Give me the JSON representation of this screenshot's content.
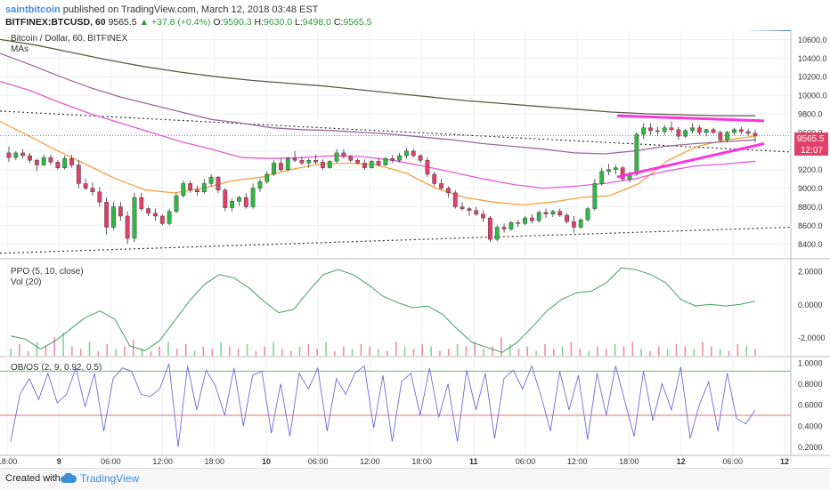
{
  "header": {
    "author": "saintbitcoin",
    "publish_text": "published on TradingView.com, March 12, 2018 03:48 EST",
    "symbol": "BITFINEX:BTCUSD, 60",
    "last": "9565.5",
    "change": "▲ +37.8 (+0.4%)",
    "o_label": "O:",
    "o": "9590.3",
    "h_label": "H:",
    "h": "9630.0",
    "l_label": "L:",
    "l": "9498.0",
    "c_label": "C:",
    "c": "9565.5"
  },
  "panes": {
    "main_title": "Bitcoin / Dollar, 60, BITFINEX",
    "main_subtitle": "MAs",
    "ppo_title": "PPO (5, 10, close)",
    "vol_title": "Vol (20)",
    "obos_title": "OB/OS (2, 9, 0.92, 0.5)",
    "price_tag": "9565.5",
    "time_tag": "12:07"
  },
  "footer": {
    "created": "Created with",
    "brand": "TradingView"
  },
  "colors": {
    "up": "#2fb844",
    "down": "#e0406a",
    "ma_orange": "#f5a040",
    "ma_pink": "#e65ad8",
    "ma_purple": "#9a6b93",
    "ma_dark": "#5a5a4a",
    "trend_blue": "#3d7fc9",
    "channel_magenta": "#ff33dd",
    "ppo": "#3fa063",
    "obos": "#6b6bd6",
    "level_red": "#e57373",
    "level_green": "#6bbf6b"
  },
  "chart_data": [
    {
      "type": "candlestick",
      "title": "Bitcoin / Dollar, 60, BITFINEX",
      "x_ticks": [
        "18:00",
        "9",
        "06:00",
        "12:00",
        "18:00",
        "10",
        "06:00",
        "12:00",
        "18:00",
        "11",
        "06:00",
        "12:00",
        "18:00",
        "12",
        "06:00",
        "12"
      ],
      "y_ticks": [
        10600,
        10400,
        10200,
        10000,
        9800,
        9600,
        9400,
        9200,
        9000,
        8800,
        8600,
        8400
      ],
      "ylim": [
        8250,
        10700
      ],
      "ohlc": [
        [
          9380,
          9450,
          9280,
          9330
        ],
        [
          9330,
          9400,
          9300,
          9380
        ],
        [
          9380,
          9420,
          9320,
          9350
        ],
        [
          9350,
          9380,
          9270,
          9300
        ],
        [
          9300,
          9320,
          9180,
          9250
        ],
        [
          9250,
          9360,
          9240,
          9330
        ],
        [
          9330,
          9360,
          9250,
          9280
        ],
        [
          9280,
          9300,
          9200,
          9220
        ],
        [
          9220,
          9350,
          9200,
          9320
        ],
        [
          9320,
          9360,
          9220,
          9250
        ],
        [
          9250,
          9300,
          9000,
          9050
        ],
        [
          9050,
          9100,
          8980,
          9000
        ],
        [
          9000,
          9060,
          8920,
          8960
        ],
        [
          8960,
          9010,
          8800,
          8850
        ],
        [
          8850,
          8900,
          8500,
          8580
        ],
        [
          8580,
          8850,
          8550,
          8800
        ],
        [
          8800,
          8850,
          8650,
          8700
        ],
        [
          8700,
          8750,
          8400,
          8460
        ],
        [
          8460,
          8950,
          8420,
          8900
        ],
        [
          8900,
          8950,
          8750,
          8780
        ],
        [
          8780,
          8800,
          8700,
          8730
        ],
        [
          8730,
          8780,
          8650,
          8700
        ],
        [
          8700,
          8720,
          8600,
          8620
        ],
        [
          8620,
          8780,
          8600,
          8750
        ],
        [
          8750,
          8950,
          8730,
          8920
        ],
        [
          8920,
          9080,
          8900,
          9050
        ],
        [
          9050,
          9080,
          8950,
          8980
        ],
        [
          8980,
          9030,
          8920,
          8960
        ],
        [
          8960,
          9100,
          8940,
          9050
        ],
        [
          9050,
          9150,
          9020,
          9120
        ],
        [
          9120,
          9130,
          8950,
          8980
        ],
        [
          8980,
          9000,
          8750,
          8790
        ],
        [
          8790,
          8890,
          8750,
          8860
        ],
        [
          8860,
          8920,
          8810,
          8900
        ],
        [
          8900,
          8950,
          8780,
          8800
        ],
        [
          8800,
          9050,
          8780,
          9000
        ],
        [
          9000,
          9100,
          8960,
          9070
        ],
        [
          9070,
          9180,
          9050,
          9150
        ],
        [
          9150,
          9300,
          9130,
          9270
        ],
        [
          9270,
          9320,
          9180,
          9200
        ],
        [
          9200,
          9340,
          9180,
          9320
        ],
        [
          9320,
          9400,
          9280,
          9300
        ],
        [
          9300,
          9340,
          9250,
          9270
        ],
        [
          9270,
          9320,
          9220,
          9300
        ],
        [
          9300,
          9360,
          9260,
          9280
        ],
        [
          9280,
          9310,
          9200,
          9220
        ],
        [
          9220,
          9300,
          9210,
          9290
        ],
        [
          9290,
          9420,
          9270,
          9380
        ],
        [
          9380,
          9420,
          9320,
          9340
        ],
        [
          9340,
          9360,
          9280,
          9300
        ],
        [
          9300,
          9320,
          9260,
          9270
        ],
        [
          9270,
          9310,
          9200,
          9220
        ],
        [
          9220,
          9300,
          9210,
          9290
        ],
        [
          9290,
          9330,
          9230,
          9250
        ],
        [
          9250,
          9340,
          9240,
          9320
        ],
        [
          9320,
          9360,
          9270,
          9300
        ],
        [
          9300,
          9380,
          9280,
          9350
        ],
        [
          9350,
          9430,
          9320,
          9400
        ],
        [
          9400,
          9420,
          9330,
          9350
        ],
        [
          9350,
          9370,
          9270,
          9300
        ],
        [
          9300,
          9330,
          9120,
          9150
        ],
        [
          9150,
          9180,
          9020,
          9050
        ],
        [
          9050,
          9100,
          8980,
          9000
        ],
        [
          9000,
          9020,
          8900,
          8950
        ],
        [
          8950,
          8980,
          8780,
          8800
        ],
        [
          8800,
          8850,
          8760,
          8780
        ],
        [
          8780,
          8800,
          8700,
          8760
        ],
        [
          8760,
          8800,
          8700,
          8720
        ],
        [
          8720,
          8760,
          8640,
          8680
        ],
        [
          8680,
          8700,
          8420,
          8450
        ],
        [
          8450,
          8600,
          8430,
          8580
        ],
        [
          8580,
          8620,
          8520,
          8560
        ],
        [
          8560,
          8650,
          8540,
          8630
        ],
        [
          8630,
          8660,
          8580,
          8620
        ],
        [
          8620,
          8700,
          8600,
          8680
        ],
        [
          8680,
          8720,
          8620,
          8650
        ],
        [
          8650,
          8760,
          8630,
          8740
        ],
        [
          8740,
          8780,
          8680,
          8720
        ],
        [
          8720,
          8770,
          8690,
          8750
        ],
        [
          8750,
          8780,
          8690,
          8710
        ],
        [
          8710,
          8730,
          8620,
          8640
        ],
        [
          8640,
          8700,
          8520,
          8580
        ],
        [
          8580,
          8680,
          8560,
          8660
        ],
        [
          8660,
          8800,
          8640,
          8780
        ],
        [
          8780,
          9100,
          8760,
          9050
        ],
        [
          9050,
          9220,
          9030,
          9180
        ],
        [
          9180,
          9260,
          9140,
          9200
        ],
        [
          9200,
          9250,
          9150,
          9220
        ],
        [
          9220,
          9240,
          9080,
          9100
        ],
        [
          9100,
          9180,
          9060,
          9150
        ],
        [
          9150,
          9600,
          9130,
          9580
        ],
        [
          9580,
          9700,
          9530,
          9650
        ],
        [
          9650,
          9700,
          9570,
          9620
        ],
        [
          9620,
          9660,
          9560,
          9610
        ],
        [
          9610,
          9680,
          9570,
          9650
        ],
        [
          9650,
          9720,
          9600,
          9630
        ],
        [
          9630,
          9660,
          9520,
          9560
        ],
        [
          9560,
          9640,
          9540,
          9620
        ],
        [
          9620,
          9700,
          9590,
          9650
        ],
        [
          9650,
          9680,
          9570,
          9600
        ],
        [
          9600,
          9640,
          9560,
          9630
        ],
        [
          9630,
          9650,
          9580,
          9600
        ],
        [
          9600,
          9620,
          9500,
          9520
        ],
        [
          9520,
          9620,
          9490,
          9600
        ],
        [
          9600,
          9650,
          9570,
          9630
        ],
        [
          9630,
          9660,
          9580,
          9610
        ],
        [
          9610,
          9640,
          9570,
          9590
        ],
        [
          9590,
          9630,
          9498,
          9565
        ]
      ],
      "moving_averages": [
        {
          "name": "",
          "color": "#f5a040",
          "points": [
            9720,
            9560,
            9400,
            9250,
            9100,
            8980,
            8950,
            9000,
            9080,
            9120,
            9200,
            9260,
            9270,
            9250,
            9160,
            9000,
            8900,
            8850,
            8820,
            8850,
            8900,
            8920,
            9050,
            9300,
            9450,
            9520,
            9560
          ]
        },
        {
          "name": "",
          "color": "#e65ad8",
          "points": [
            10150,
            10050,
            9920,
            9800,
            9700,
            9600,
            9500,
            9420,
            9330,
            9320,
            9330,
            9350,
            9340,
            9300,
            9240,
            9170,
            9100,
            9040,
            9000,
            9020,
            9050,
            9100,
            9180,
            9240,
            9260,
            9290
          ]
        },
        {
          "name": "",
          "color": "#9a6b93",
          "points": [
            10450,
            10330,
            10200,
            10080,
            9980,
            9900,
            9820,
            9740,
            9700,
            9650,
            9630,
            9620,
            9600,
            9580,
            9550,
            9520,
            9480,
            9450,
            9420,
            9380,
            9370,
            9400,
            9450,
            9480,
            9500,
            9520
          ]
        },
        {
          "name": "",
          "color": "#5a5a4a",
          "points": [
            10600,
            10540,
            10460,
            10380,
            10310,
            10250,
            10200,
            10160,
            10130,
            10100,
            10060,
            10020,
            9980,
            9940,
            9910,
            9880,
            9850,
            9820,
            9800,
            9790,
            9780,
            9780
          ]
        }
      ]
    },
    {
      "type": "line",
      "title": "PPO (5, 10, close)",
      "y_ticks": [
        2.0,
        0.0,
        -2.0
      ],
      "ylim": [
        -3.1,
        2.7
      ],
      "values": [
        -1.9,
        -2.1,
        -2.7,
        -2.2,
        -1.5,
        -0.8,
        -0.4,
        -0.9,
        -2.5,
        -2.8,
        -2.2,
        -1.0,
        0.2,
        1.2,
        1.8,
        1.6,
        1.0,
        0.2,
        -0.5,
        -0.3,
        0.8,
        1.8,
        2.1,
        1.8,
        1.2,
        0.5,
        0.1,
        -0.2,
        -0.1,
        -0.6,
        -1.5,
        -2.3,
        -2.6,
        -2.9,
        -2.3,
        -1.4,
        -0.4,
        0.3,
        0.7,
        0.8,
        1.3,
        2.2,
        2.1,
        1.8,
        1.3,
        0.3,
        -0.1,
        0.0,
        -0.1,
        0.0,
        0.2
      ]
    },
    {
      "type": "bar",
      "title": "Vol (20)",
      "values": [
        3,
        5,
        2,
        6,
        4,
        8,
        10,
        4,
        3,
        6,
        2,
        5,
        3,
        4,
        7,
        3,
        2,
        4,
        6,
        3,
        5,
        2,
        4,
        3,
        6,
        4,
        3,
        5,
        2,
        4,
        6,
        3,
        2,
        4,
        5,
        3,
        6,
        2,
        4,
        3,
        5,
        4,
        3,
        2,
        6,
        4,
        3,
        5,
        4,
        2,
        3,
        5,
        4,
        6,
        3,
        4,
        8,
        5,
        3,
        4,
        2,
        5,
        3,
        4,
        6,
        3,
        2,
        4,
        3,
        5,
        4,
        6,
        3,
        2,
        4,
        3,
        5,
        4,
        3,
        6,
        4,
        3,
        2,
        5,
        4,
        3
      ]
    },
    {
      "type": "line",
      "title": "OB/OS (2, 9, 0.92, 0.5)",
      "y_ticks": [
        1.0,
        0.8,
        0.6,
        0.4,
        0.2
      ],
      "ylim": [
        0.12,
        1.05
      ],
      "levels": [
        0.92,
        0.5
      ],
      "values": [
        0.25,
        0.7,
        0.85,
        0.65,
        0.9,
        0.62,
        0.7,
        0.95,
        0.58,
        0.9,
        0.35,
        0.85,
        0.95,
        0.92,
        0.7,
        0.68,
        0.75,
        0.99,
        0.2,
        0.97,
        0.55,
        0.93,
        0.78,
        0.5,
        0.95,
        0.4,
        0.88,
        0.92,
        0.33,
        0.8,
        0.3,
        0.9,
        0.75,
        0.95,
        0.35,
        0.85,
        0.7,
        0.9,
        0.97,
        0.38,
        0.88,
        0.25,
        0.82,
        0.9,
        0.5,
        0.95,
        0.48,
        0.8,
        0.25,
        0.93,
        0.55,
        0.9,
        0.28,
        0.85,
        0.93,
        0.75,
        0.97,
        0.68,
        0.35,
        0.92,
        0.55,
        0.88,
        0.27,
        0.9,
        0.5,
        0.97,
        0.63,
        0.3,
        0.92,
        0.45,
        0.8,
        0.55,
        0.96,
        0.28,
        0.6,
        0.82,
        0.35,
        0.9,
        0.47,
        0.42,
        0.55
      ]
    }
  ]
}
